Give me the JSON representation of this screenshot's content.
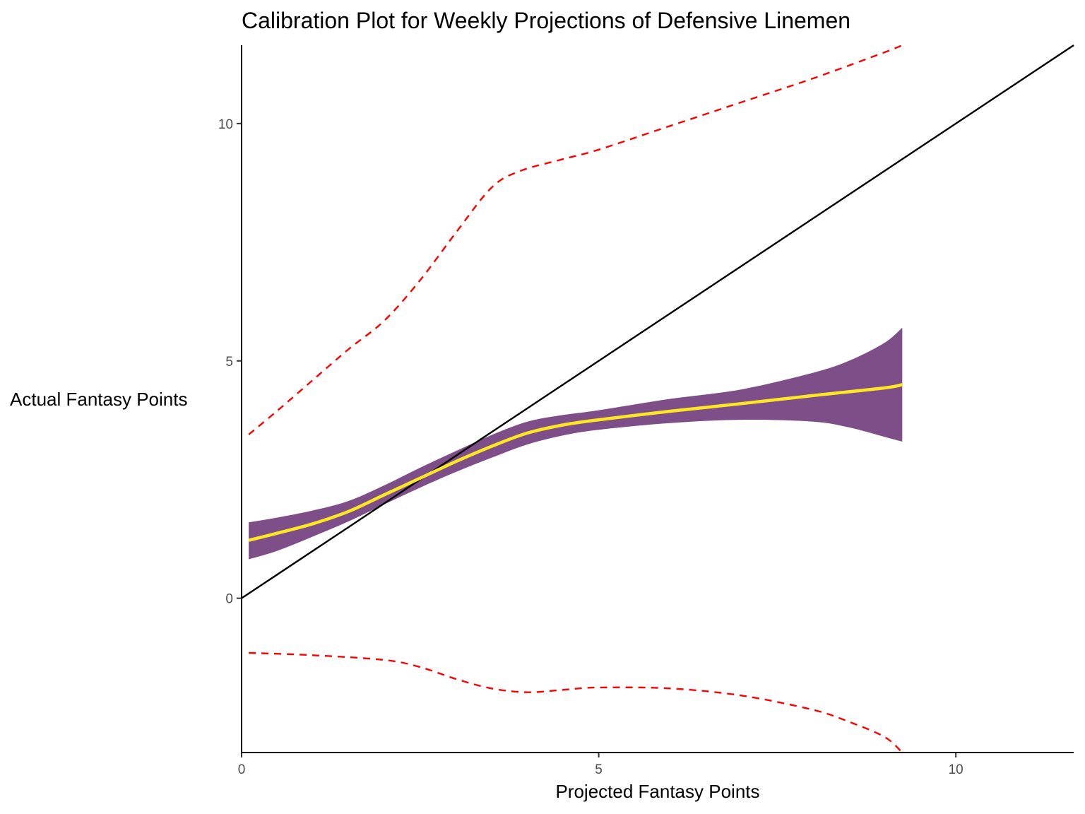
{
  "chart_data": {
    "type": "line",
    "title": "Calibration Plot for Weekly Projections of Defensive Linemen",
    "xlabel": "Projected Fantasy Points",
    "ylabel": "Actual Fantasy Points",
    "xlim": [
      0,
      11.65
    ],
    "ylim": [
      -3.25,
      11.65
    ],
    "x_ticks": [
      0,
      5,
      10
    ],
    "y_ticks": [
      0,
      5,
      10
    ],
    "grid": false,
    "legend": "none",
    "series": [
      {
        "kind": "reference_line",
        "color": "#000000",
        "x": [
          0,
          11.65
        ],
        "y": [
          0,
          11.65
        ]
      },
      {
        "kind": "ribbon",
        "color": "#7d4e88",
        "x": [
          0.1,
          0.5,
          1.0,
          1.5,
          2.0,
          2.5,
          3.0,
          3.5,
          4.0,
          4.5,
          5.0,
          6.0,
          7.0,
          8.0,
          8.5,
          9.0,
          9.25
        ],
        "ymin": [
          0.82,
          1.0,
          1.3,
          1.62,
          1.98,
          2.33,
          2.66,
          2.96,
          3.24,
          3.43,
          3.55,
          3.69,
          3.76,
          3.72,
          3.6,
          3.4,
          3.3
        ],
        "ymax": [
          1.6,
          1.7,
          1.85,
          2.05,
          2.38,
          2.75,
          3.1,
          3.44,
          3.72,
          3.86,
          3.96,
          4.2,
          4.4,
          4.75,
          5.0,
          5.38,
          5.7
        ]
      },
      {
        "kind": "smooth_line",
        "color": "#fde725",
        "x": [
          0.1,
          0.5,
          1.0,
          1.5,
          2.0,
          2.5,
          3.0,
          3.5,
          4.0,
          4.5,
          5.0,
          6.0,
          7.0,
          8.0,
          9.0,
          9.25
        ],
        "y": [
          1.22,
          1.37,
          1.57,
          1.83,
          2.18,
          2.53,
          2.88,
          3.2,
          3.48,
          3.65,
          3.76,
          3.94,
          4.1,
          4.27,
          4.43,
          4.5
        ]
      },
      {
        "kind": "upper_dashed",
        "color": "#ff0000",
        "x": [
          0.1,
          0.5,
          1.0,
          1.5,
          2.0,
          2.5,
          3.0,
          3.5,
          3.9,
          4.5,
          5.0,
          6.0,
          7.0,
          8.0,
          9.0,
          9.25
        ],
        "y": [
          3.45,
          3.95,
          4.6,
          5.25,
          5.85,
          6.7,
          7.7,
          8.65,
          9.0,
          9.25,
          9.45,
          9.95,
          10.45,
          10.95,
          11.5,
          11.65
        ]
      },
      {
        "kind": "lower_dashed",
        "color": "#ff0000",
        "x": [
          0.1,
          1.0,
          2.0,
          2.5,
          3.0,
          3.5,
          4.0,
          4.5,
          5.0,
          6.0,
          7.0,
          8.0,
          8.5,
          9.0,
          9.25
        ],
        "y": [
          -1.15,
          -1.2,
          -1.3,
          -1.45,
          -1.7,
          -1.9,
          -1.98,
          -1.93,
          -1.88,
          -1.9,
          -2.05,
          -2.35,
          -2.6,
          -2.92,
          -3.25
        ]
      }
    ]
  }
}
